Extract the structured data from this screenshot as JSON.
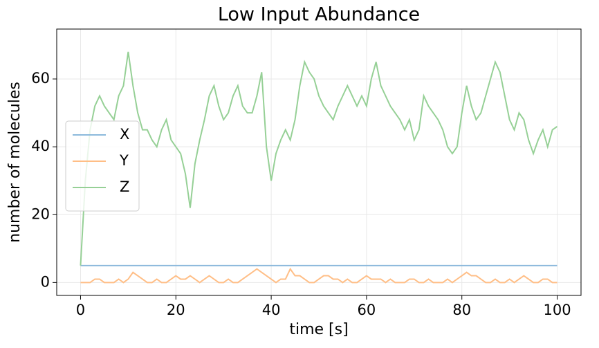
{
  "chart_data": {
    "type": "line",
    "title": "Low Input Abundance",
    "x_label": "time [s]",
    "y_label": "number of molecules",
    "x": [
      0,
      1,
      2,
      3,
      4,
      5,
      6,
      7,
      8,
      9,
      10,
      11,
      12,
      13,
      14,
      15,
      16,
      17,
      18,
      19,
      20,
      21,
      22,
      23,
      24,
      25,
      26,
      27,
      28,
      29,
      30,
      31,
      32,
      33,
      34,
      35,
      36,
      37,
      38,
      39,
      40,
      41,
      42,
      43,
      44,
      45,
      46,
      47,
      48,
      49,
      50,
      51,
      52,
      53,
      54,
      55,
      56,
      57,
      58,
      59,
      60,
      61,
      62,
      63,
      64,
      65,
      66,
      67,
      68,
      69,
      70,
      71,
      72,
      73,
      74,
      75,
      76,
      77,
      78,
      79,
      80,
      81,
      82,
      83,
      84,
      85,
      86,
      87,
      88,
      89,
      90,
      91,
      92,
      93,
      94,
      95,
      96,
      97,
      98,
      99,
      100
    ],
    "series": [
      {
        "name": "X",
        "color": "#8cb9dc",
        "values": [
          5,
          5,
          5,
          5,
          5,
          5,
          5,
          5,
          5,
          5,
          5,
          5,
          5,
          5,
          5,
          5,
          5,
          5,
          5,
          5,
          5,
          5,
          5,
          5,
          5,
          5,
          5,
          5,
          5,
          5,
          5,
          5,
          5,
          5,
          5,
          5,
          5,
          5,
          5,
          5,
          5,
          5,
          5,
          5,
          5,
          5,
          5,
          5,
          5,
          5,
          5,
          5,
          5,
          5,
          5,
          5,
          5,
          5,
          5,
          5,
          5,
          5,
          5,
          5,
          5,
          5,
          5,
          5,
          5,
          5,
          5,
          5,
          5,
          5,
          5,
          5,
          5,
          5,
          5,
          5,
          5,
          5,
          5,
          5,
          5,
          5,
          5,
          5,
          5,
          5,
          5,
          5,
          5,
          5,
          5,
          5,
          5,
          5,
          5,
          5,
          5
        ]
      },
      {
        "name": "Y",
        "color": "#ffbe86",
        "values": [
          0,
          0,
          0,
          1,
          1,
          0,
          0,
          0,
          1,
          0,
          1,
          3,
          2,
          1,
          0,
          0,
          1,
          0,
          0,
          1,
          2,
          1,
          1,
          2,
          1,
          0,
          1,
          2,
          1,
          0,
          0,
          1,
          0,
          0,
          1,
          2,
          3,
          4,
          3,
          2,
          1,
          0,
          1,
          1,
          4,
          2,
          2,
          1,
          0,
          0,
          1,
          2,
          2,
          1,
          1,
          0,
          1,
          0,
          0,
          1,
          2,
          1,
          1,
          1,
          0,
          1,
          0,
          0,
          0,
          1,
          1,
          0,
          0,
          1,
          0,
          0,
          0,
          1,
          0,
          1,
          2,
          3,
          2,
          2,
          1,
          0,
          0,
          1,
          0,
          0,
          1,
          0,
          1,
          2,
          1,
          0,
          0,
          1,
          1,
          0,
          0
        ]
      },
      {
        "name": "Z",
        "color": "#96d096",
        "values": [
          5,
          30,
          45,
          52,
          55,
          52,
          50,
          48,
          55,
          58,
          68,
          58,
          50,
          45,
          45,
          42,
          40,
          45,
          48,
          42,
          40,
          38,
          32,
          22,
          35,
          42,
          48,
          55,
          58,
          52,
          48,
          50,
          55,
          58,
          52,
          50,
          50,
          55,
          62,
          40,
          30,
          38,
          42,
          45,
          42,
          48,
          58,
          65,
          62,
          60,
          55,
          52,
          50,
          48,
          52,
          55,
          58,
          55,
          52,
          55,
          52,
          60,
          65,
          58,
          55,
          52,
          50,
          48,
          45,
          48,
          42,
          45,
          55,
          52,
          50,
          48,
          45,
          40,
          38,
          40,
          50,
          58,
          52,
          48,
          50,
          55,
          60,
          65,
          62,
          55,
          48,
          45,
          50,
          48,
          42,
          38,
          42,
          45,
          40,
          45,
          46
        ]
      }
    ],
    "xlim": [
      -5,
      105
    ],
    "ylim": [
      -3.8,
      74.7
    ],
    "xticks": [
      0,
      20,
      40,
      60,
      80,
      100
    ],
    "yticks": [
      0,
      20,
      40,
      60
    ],
    "grid": true,
    "legend": "center left"
  }
}
